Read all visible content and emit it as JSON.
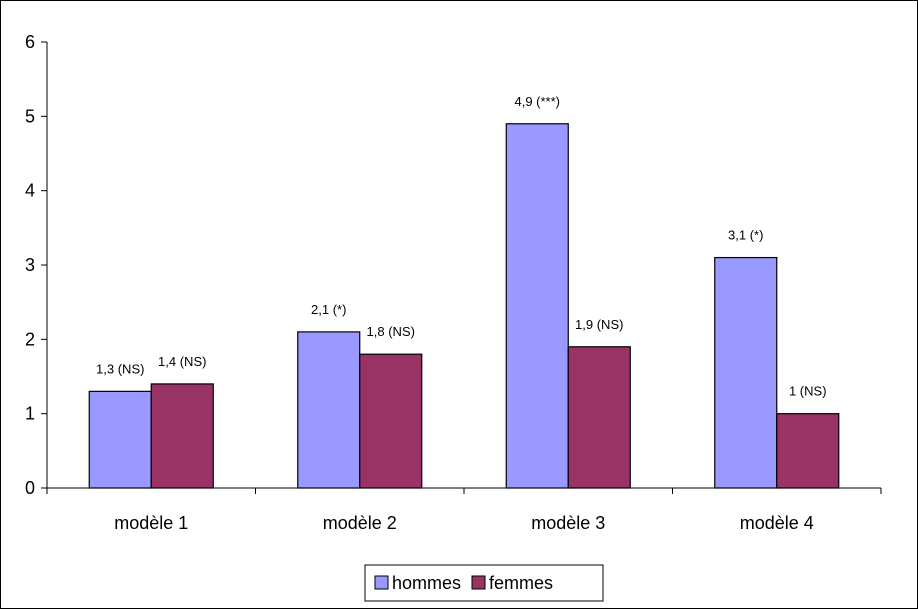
{
  "chart_data": {
    "type": "bar",
    "title": "",
    "xlabel": "",
    "ylabel": "",
    "ylim": [
      0,
      6
    ],
    "yticks": [
      0,
      1,
      2,
      3,
      4,
      5,
      6
    ],
    "grid": false,
    "legend_position": "bottom",
    "categories": [
      "modèle 1",
      "modèle 2",
      "modèle 3",
      "modèle 4"
    ],
    "series": [
      {
        "name": "hommes",
        "color": "#9999ff",
        "values": [
          1.3,
          2.1,
          4.9,
          3.1
        ],
        "labels": [
          "1,3 (NS)",
          "2,1 (*)",
          "4,9 (***)",
          "3,1 (*)"
        ]
      },
      {
        "name": "femmes",
        "color": "#993366",
        "values": [
          1.4,
          1.8,
          1.9,
          1.0
        ],
        "labels": [
          "1,4 (NS)",
          "1,8 (NS)",
          "1,9 (NS)",
          "1 (NS)"
        ]
      }
    ]
  }
}
